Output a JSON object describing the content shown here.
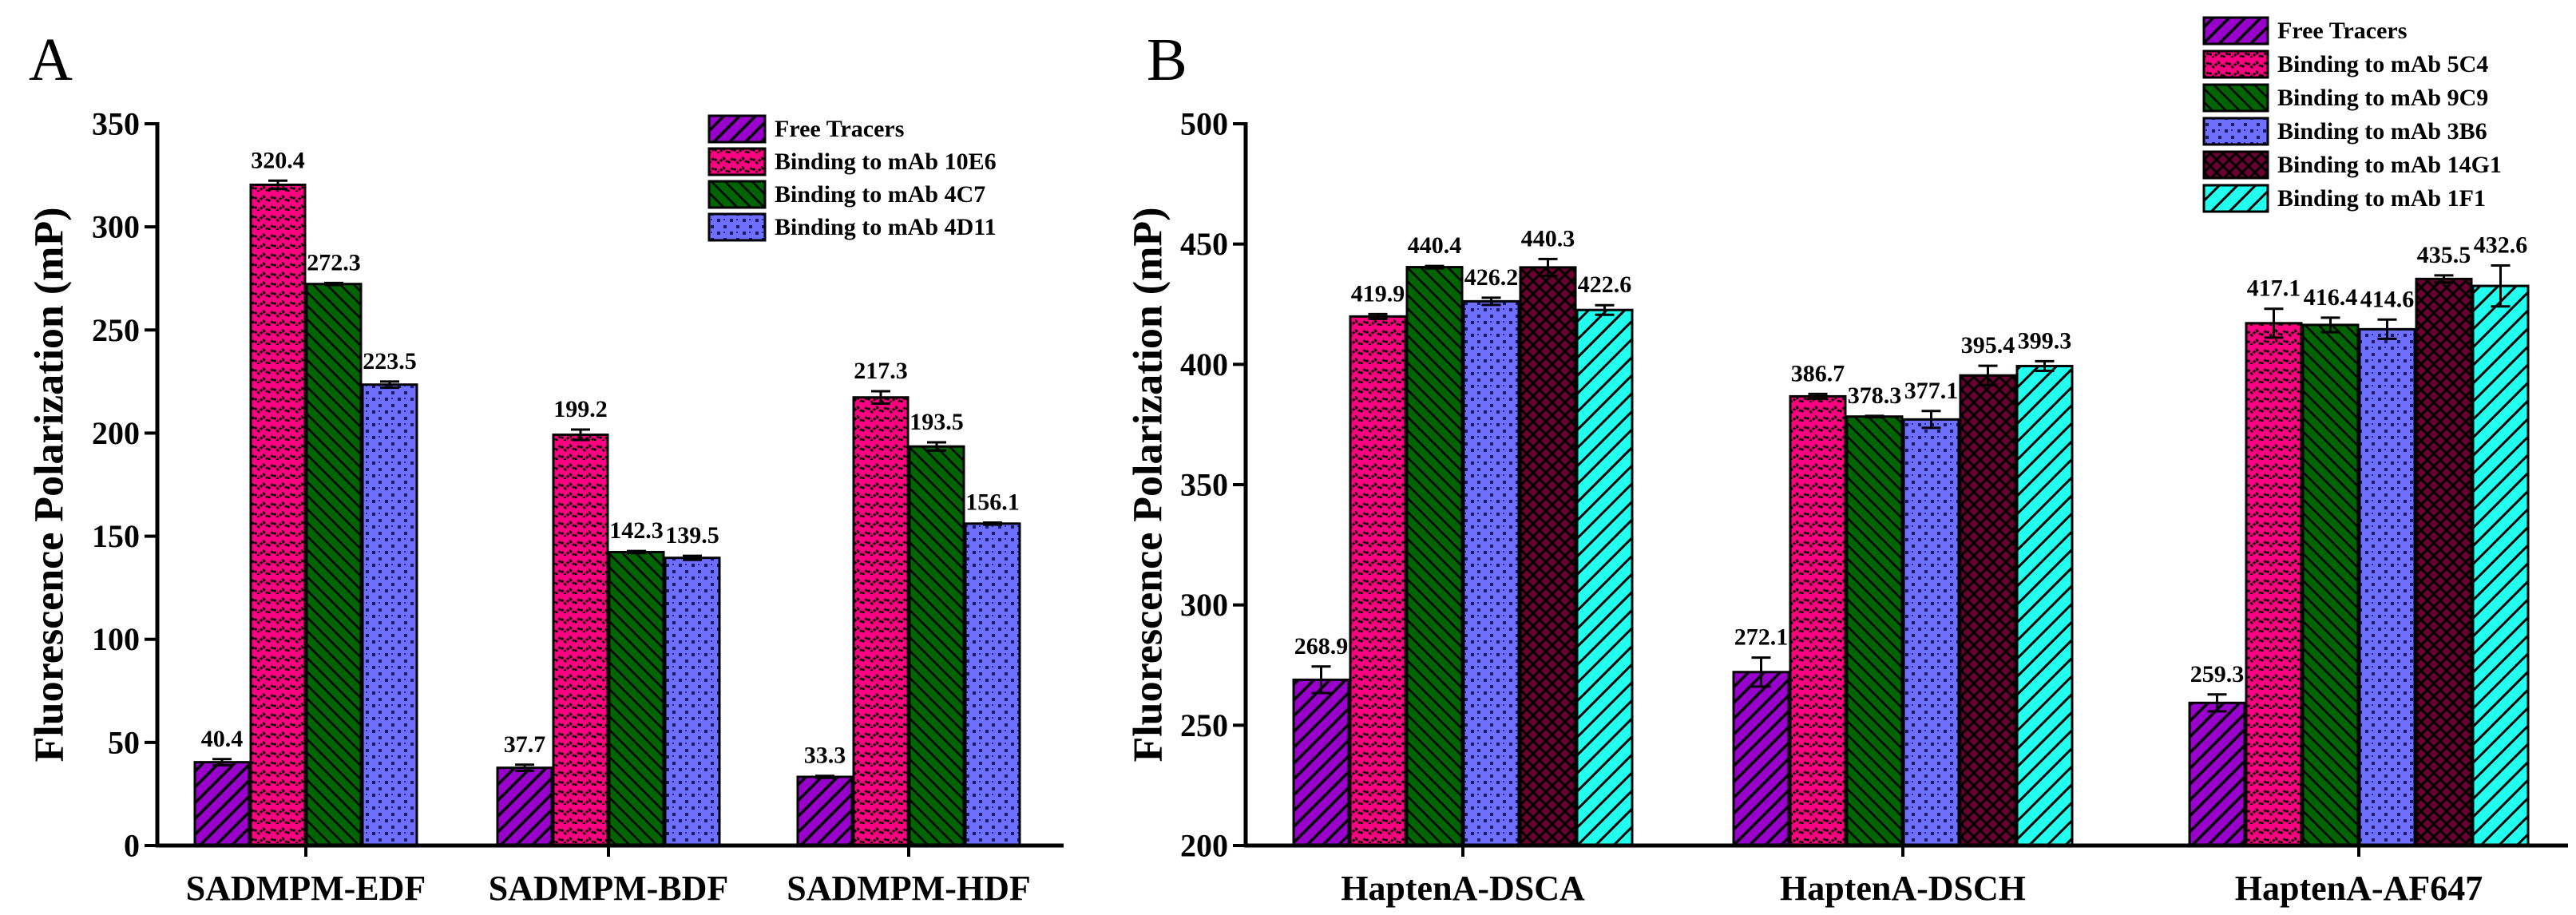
{
  "chart_data": [
    {
      "panel": "A",
      "type": "bar",
      "title": "",
      "xlabel": "",
      "ylabel": "Fluorescence Polarization (mP)",
      "ylim": [
        0,
        350
      ],
      "yticks": [
        0,
        50,
        100,
        150,
        200,
        250,
        300,
        350
      ],
      "legend_position": "top-right",
      "categories": [
        "SADMPM-EDF",
        "SADMPM-BDF",
        "SADMPM-HDF"
      ],
      "series": [
        {
          "name": "Free Tracers",
          "color": "#9900cc",
          "pattern": "diag",
          "values": [
            40.4,
            37.7,
            33.3
          ],
          "errors": [
            1.5,
            1.5,
            0.5
          ]
        },
        {
          "name": "Binding to mAb 10E6",
          "color": "#ff0080",
          "pattern": "net",
          "values": [
            320.4,
            199.2,
            217.3
          ],
          "errors": [
            2.0,
            2.5,
            3.0
          ]
        },
        {
          "name": "Binding to mAb 4C7",
          "color": "#006400",
          "pattern": "diagrev",
          "values": [
            272.3,
            142.3,
            193.5
          ],
          "errors": [
            0.5,
            0.5,
            2.0
          ]
        },
        {
          "name": "Binding to mAb 4D11",
          "color": "#6f6fff",
          "pattern": "dots",
          "values": [
            223.5,
            139.5,
            156.1
          ],
          "errors": [
            1.5,
            1.0,
            0.5
          ]
        }
      ]
    },
    {
      "panel": "B",
      "type": "bar",
      "title": "",
      "xlabel": "",
      "ylabel": "Fluorescence Polarization (mP)",
      "ylim": [
        200,
        500
      ],
      "yticks": [
        200,
        250,
        300,
        350,
        400,
        450,
        500
      ],
      "legend_position": "top-right",
      "categories": [
        "HaptenA-DSCA",
        "HaptenA-DSCH",
        "HaptenA-AF647"
      ],
      "series": [
        {
          "name": "Free Tracers",
          "color": "#9900cc",
          "pattern": "diag",
          "values": [
            268.9,
            272.1,
            259.3
          ],
          "errors": [
            5.5,
            6.0,
            3.5
          ]
        },
        {
          "name": "Binding to mAb 5C4",
          "color": "#ff0080",
          "pattern": "net",
          "values": [
            419.9,
            386.7,
            417.1
          ],
          "errors": [
            1.0,
            1.0,
            6.0
          ]
        },
        {
          "name": "Binding to mAb 9C9",
          "color": "#006400",
          "pattern": "diagrev",
          "values": [
            440.4,
            378.3,
            416.4
          ],
          "errors": [
            0.5,
            0.3,
            3.0
          ]
        },
        {
          "name": "Binding to mAb 3B6",
          "color": "#6f6fff",
          "pattern": "dots",
          "values": [
            426.2,
            377.1,
            414.6
          ],
          "errors": [
            1.5,
            3.5,
            4.0
          ]
        },
        {
          "name": "Binding to mAb 14G1",
          "color": "#6b0030",
          "pattern": "cross",
          "values": [
            440.3,
            395.4,
            435.5
          ],
          "errors": [
            3.5,
            4.0,
            1.5
          ]
        },
        {
          "name": "Binding to mAb 1F1",
          "color": "#22ffee",
          "pattern": "diag2",
          "values": [
            422.6,
            399.3,
            432.6
          ],
          "errors": [
            2.0,
            2.0,
            8.5
          ]
        }
      ]
    }
  ]
}
